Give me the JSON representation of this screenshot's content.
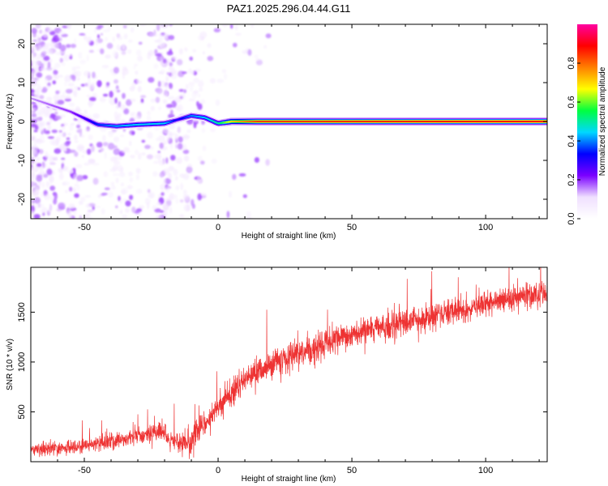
{
  "chart_data": [
    {
      "type": "heatmap",
      "title": "PAZ1.2025.296.04.44.G11",
      "xlabel": "Height of straight line (km)",
      "ylabel": "Frequency (Hz)",
      "xlim": [
        -70,
        123
      ],
      "ylim": [
        -25,
        25
      ],
      "x_ticks": [
        -50,
        0,
        50,
        100
      ],
      "y_ticks": [
        -20,
        -10,
        0,
        10,
        20
      ],
      "colorbar": {
        "label": "Normalized spectral amplitude",
        "range": [
          0,
          1
        ],
        "ticks": [
          0.0,
          0.2,
          0.4,
          0.6,
          0.8
        ],
        "tick_labels": [
          "0.0",
          "0.2",
          "0.4",
          "0.6",
          "0.8"
        ],
        "colormap": [
          "#ffffff",
          "#f0e0ff",
          "#7a00ff",
          "#0000ff",
          "#00d8ff",
          "#00ff40",
          "#ffff00",
          "#ff8000",
          "#ff0000",
          "#ff00a0"
        ]
      },
      "ridge": [
        {
          "x": -70,
          "freq": 6,
          "amp": 0.15
        },
        {
          "x": -55,
          "freq": 2.5,
          "amp": 0.2
        },
        {
          "x": -45,
          "freq": -0.8,
          "amp": 0.35
        },
        {
          "x": -38,
          "freq": -1.2,
          "amp": 0.42
        },
        {
          "x": -30,
          "freq": -0.8,
          "amp": 0.45
        },
        {
          "x": -20,
          "freq": -0.5,
          "amp": 0.45
        },
        {
          "x": -15,
          "freq": 0.5,
          "amp": 0.3
        },
        {
          "x": -10,
          "freq": 1.5,
          "amp": 0.4
        },
        {
          "x": -5,
          "freq": 1.0,
          "amp": 0.45
        },
        {
          "x": 0,
          "freq": -0.5,
          "amp": 0.5
        },
        {
          "x": 5,
          "freq": 0.0,
          "amp": 0.7
        },
        {
          "x": 15,
          "freq": 0.0,
          "amp": 0.85
        },
        {
          "x": 123,
          "freq": 0.0,
          "amp": 0.9
        }
      ],
      "noise_region": {
        "x_start": -70,
        "x_end": -5,
        "freq_range": [
          -25,
          25
        ]
      }
    },
    {
      "type": "line",
      "xlabel": "Height of straight line (km)",
      "ylabel": "SNR (10 * v/v)",
      "xlim": [
        -70,
        123
      ],
      "ylim": [
        0,
        1950
      ],
      "x_ticks": [
        -50,
        0,
        50,
        100
      ],
      "y_ticks": [
        500,
        1000,
        1500
      ],
      "color": "#ee3333",
      "trend": {
        "x": [
          -70,
          -60,
          -50,
          -40,
          -30,
          -20,
          -19,
          -15,
          -10,
          -8,
          -5,
          0,
          5,
          10,
          15,
          20,
          30,
          40,
          50,
          60,
          70,
          80,
          90,
          100,
          110,
          123
        ],
        "y": [
          120,
          130,
          160,
          200,
          260,
          300,
          200,
          190,
          180,
          320,
          380,
          560,
          700,
          820,
          900,
          980,
          1080,
          1180,
          1270,
          1340,
          1400,
          1460,
          1520,
          1570,
          1630,
          1700
        ]
      },
      "noise_amplitude": [
        {
          "x": -70,
          "amp": 60
        },
        {
          "x": -20,
          "amp": 90
        },
        {
          "x": 0,
          "amp": 140
        },
        {
          "x": 50,
          "amp": 120
        },
        {
          "x": 123,
          "amp": 120
        }
      ]
    }
  ]
}
